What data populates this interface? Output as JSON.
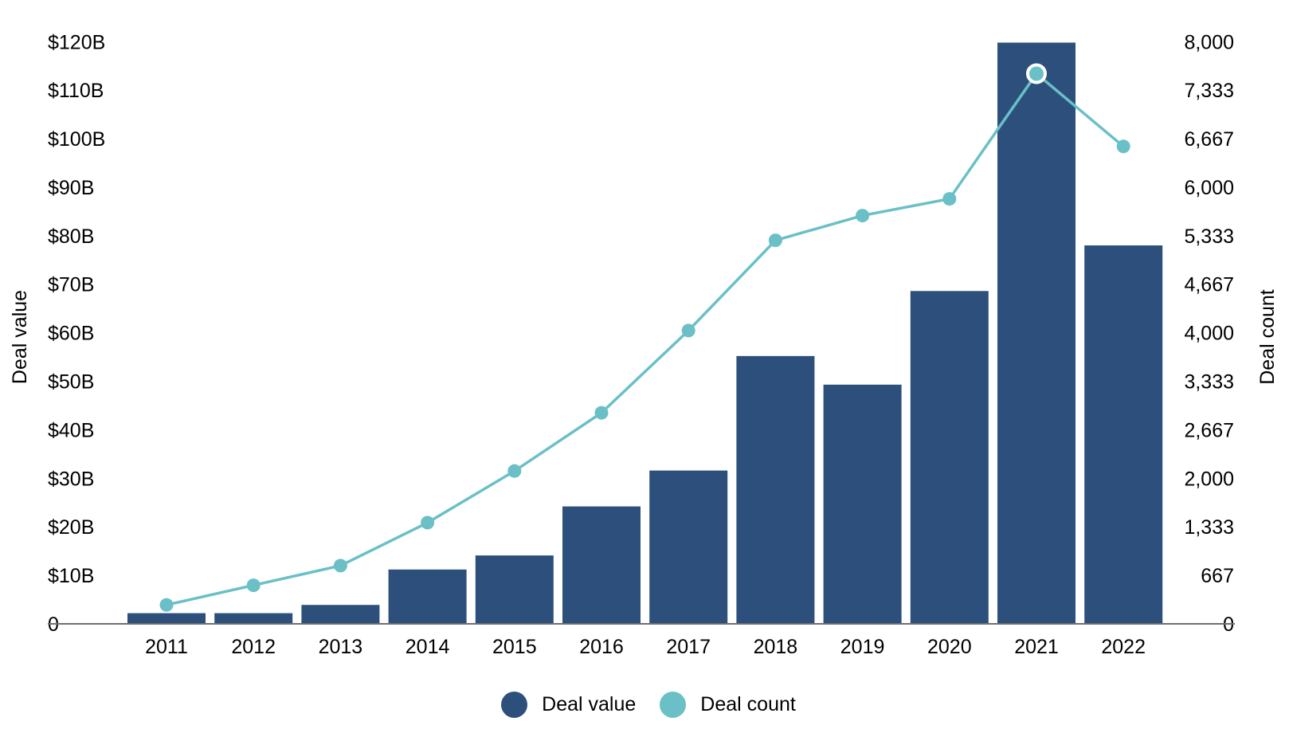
{
  "chart_data": {
    "type": "bar",
    "categories": [
      "2011",
      "2012",
      "2013",
      "2014",
      "2015",
      "2016",
      "2017",
      "2018",
      "2019",
      "2020",
      "2021",
      "2022"
    ],
    "series": [
      {
        "name": "Deal value",
        "type": "bar",
        "axis": "left",
        "color": "#2c4f7c",
        "values": [
          2.2,
          2.2,
          3.9,
          11.2,
          14.1,
          24.2,
          31.6,
          55.2,
          49.3,
          68.6,
          119.8,
          78.0
        ]
      },
      {
        "name": "Deal count",
        "type": "line",
        "axis": "right",
        "color": "#6ac0c6",
        "values": [
          260,
          530,
          800,
          1390,
          2100,
          2900,
          4030,
          5270,
          5610,
          5840,
          7560,
          6560
        ],
        "highlight_index": 10
      }
    ],
    "ylabel": "Deal value",
    "y2label": "Deal count",
    "ylim": [
      0,
      123
    ],
    "y2lim": [
      0,
      8200
    ],
    "yticks": [
      {
        "value": 0,
        "label": "0"
      },
      {
        "value": 10,
        "label": "$10B"
      },
      {
        "value": 20,
        "label": "$20B"
      },
      {
        "value": 30,
        "label": "$30B"
      },
      {
        "value": 40,
        "label": "$40B"
      },
      {
        "value": 50,
        "label": "$50B"
      },
      {
        "value": 60,
        "label": "$60B"
      },
      {
        "value": 70,
        "label": "$70B"
      },
      {
        "value": 80,
        "label": "$80B"
      },
      {
        "value": 90,
        "label": "$90B"
      },
      {
        "value": 100,
        "label": "$100B"
      },
      {
        "value": 110,
        "label": "$110B"
      },
      {
        "value": 120,
        "label": "$120B"
      }
    ],
    "y2ticks": [
      {
        "value": 0,
        "label": "0"
      },
      {
        "value": 667,
        "label": "667"
      },
      {
        "value": 1333,
        "label": "1,333"
      },
      {
        "value": 2000,
        "label": "2,000"
      },
      {
        "value": 2667,
        "label": "2,667"
      },
      {
        "value": 3333,
        "label": "3,333"
      },
      {
        "value": 4000,
        "label": "4,000"
      },
      {
        "value": 4667,
        "label": "4,667"
      },
      {
        "value": 5333,
        "label": "5,333"
      },
      {
        "value": 6000,
        "label": "6,000"
      },
      {
        "value": 6667,
        "label": "6,667"
      },
      {
        "value": 7333,
        "label": "7,333"
      },
      {
        "value": 8000,
        "label": "8,000"
      }
    ],
    "grid": false,
    "legend": "bottom-center"
  },
  "legend": {
    "items": [
      {
        "label": "Deal value",
        "color": "#2c4f7c"
      },
      {
        "label": "Deal count",
        "color": "#6ac0c6"
      }
    ]
  }
}
